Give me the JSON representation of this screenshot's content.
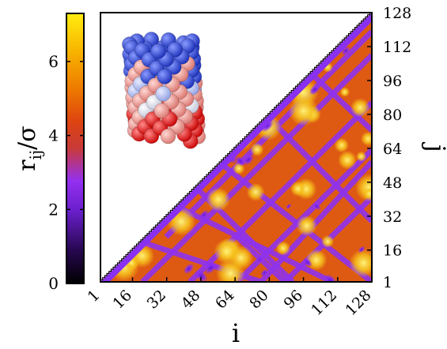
{
  "chart_data": {
    "type": "heatmap",
    "title": "",
    "xlabel": "i",
    "ylabel": "j",
    "x_ticks": [
      "1",
      "16",
      "32",
      "48",
      "64",
      "80",
      "96",
      "112",
      "128"
    ],
    "y_ticks": [
      "1",
      "16",
      "32",
      "48",
      "64",
      "80",
      "96",
      "112",
      "128"
    ],
    "xlim": [
      1,
      128
    ],
    "ylim": [
      1,
      128
    ],
    "shown_region": "lower-right triangle (j <= i)",
    "colorbar": {
      "label_main": "r",
      "label_sub": "ij",
      "label_tail": "/σ",
      "ticks": [
        "0",
        "2",
        "4",
        "6"
      ],
      "range": [
        0,
        7.3
      ],
      "colormap": [
        "#000000",
        "#2a0855",
        "#6a1fcc",
        "#9430f0",
        "#c83a3a",
        "#dd4410",
        "#ee7a00",
        "#f8b400",
        "#ffee10"
      ]
    },
    "inset": "3D helical chain of 128 beads colored from blue to red"
  }
}
